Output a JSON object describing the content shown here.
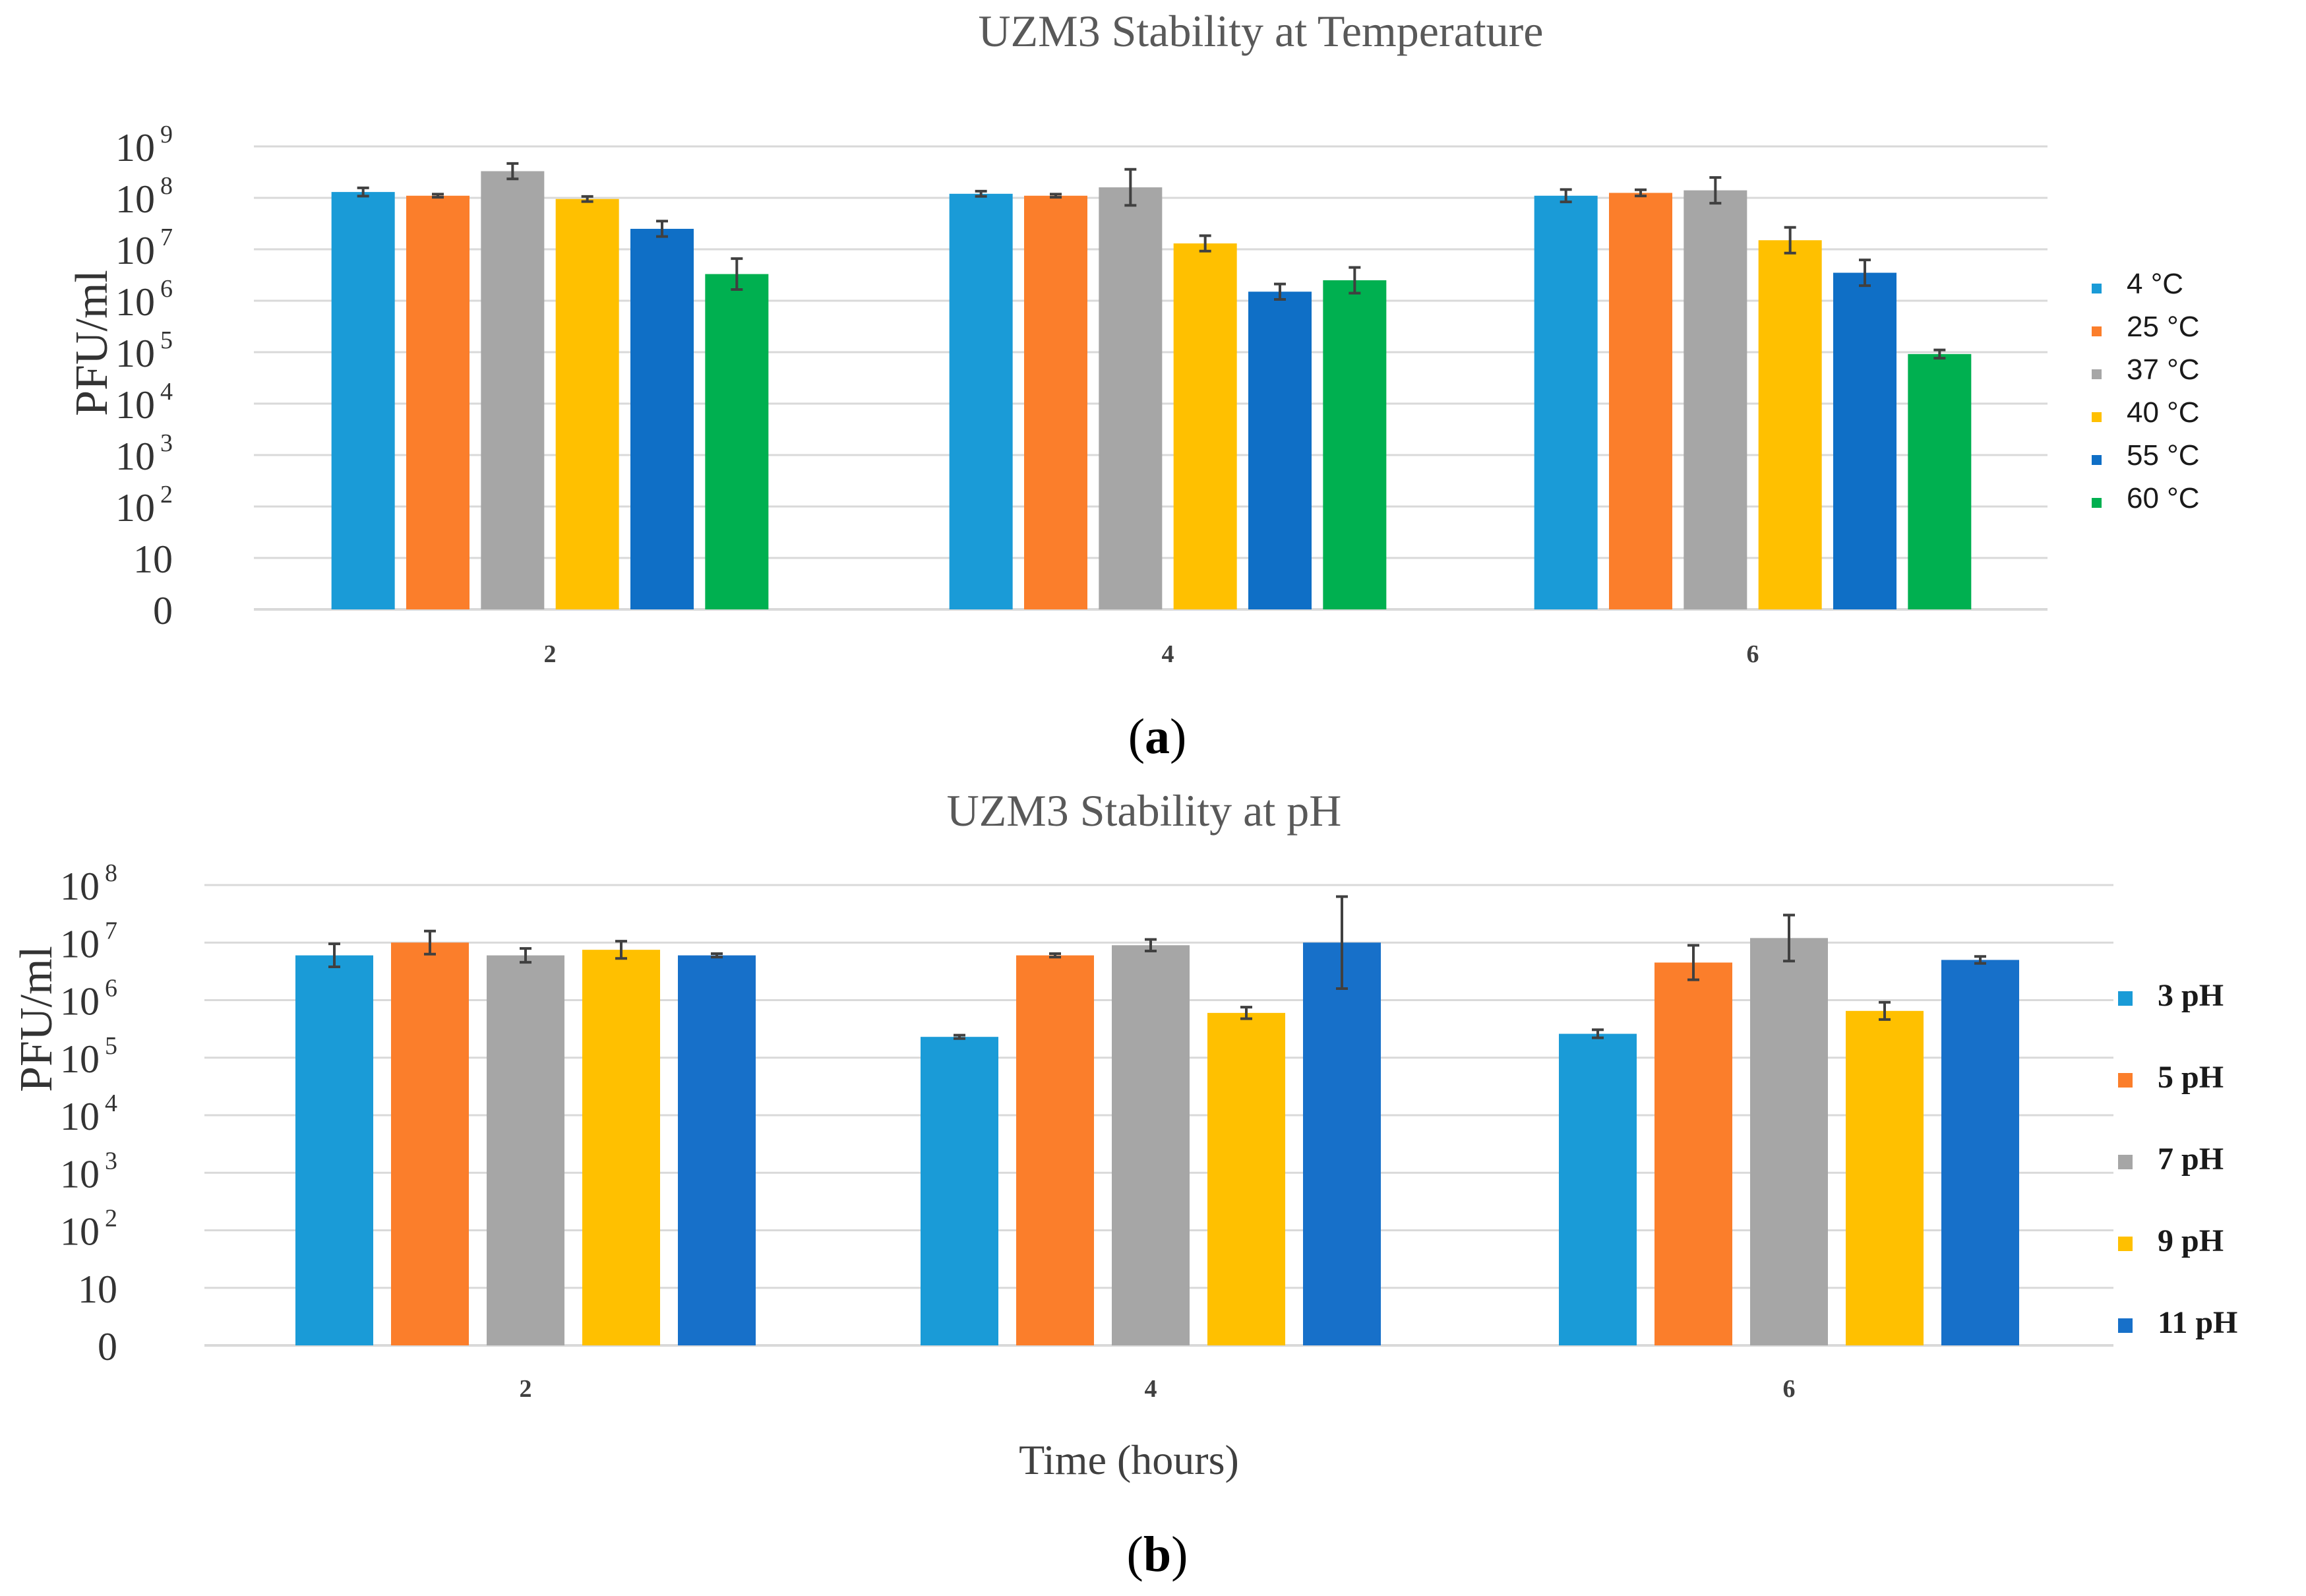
{
  "chart_data": [
    {
      "id": "temp",
      "type": "bar",
      "panel_label": "a",
      "title": "UZM3 Stability at Temperature",
      "ylabel": "PFU/ml",
      "xlabel": "",
      "yscale": "log10",
      "ylim": [
        1,
        1000000000
      ],
      "y_ticks": [
        {
          "base": "0",
          "exp": ""
        },
        {
          "base": "10",
          "exp": ""
        },
        {
          "base": "10",
          "exp": "2"
        },
        {
          "base": "10",
          "exp": "3"
        },
        {
          "base": "10",
          "exp": "4"
        },
        {
          "base": "10",
          "exp": "5"
        },
        {
          "base": "10",
          "exp": "6"
        },
        {
          "base": "10",
          "exp": "7"
        },
        {
          "base": "10",
          "exp": "8"
        },
        {
          "base": "10",
          "exp": "9"
        }
      ],
      "categories": [
        "2",
        "4",
        "6"
      ],
      "legend_position": "right",
      "series": [
        {
          "name": "4 °C",
          "color": "#1a9bd7",
          "values": [
            130000000,
            120000000,
            110000000
          ],
          "errors": [
            0.08,
            0.05,
            0.12
          ]
        },
        {
          "name": "25 °C",
          "color": "#fb7e2b",
          "values": [
            110000000,
            110000000,
            125000000
          ],
          "errors": [
            0.03,
            0.03,
            0.06
          ]
        },
        {
          "name": "37 °C",
          "color": "#a6a6a6",
          "values": [
            330000000,
            160000000,
            140000000
          ],
          "errors": [
            0.15,
            0.35,
            0.25
          ]
        },
        {
          "name": "40 °C",
          "color": "#ffc000",
          "values": [
            95000000,
            13000000,
            15000000
          ],
          "errors": [
            0.05,
            0.15,
            0.25
          ]
        },
        {
          "name": "55 °C",
          "color": "#0f6fc6",
          "values": [
            25000000,
            1500000,
            3500000
          ],
          "errors": [
            0.15,
            0.15,
            0.25
          ]
        },
        {
          "name": "60 °C",
          "color": "#00b050",
          "values": [
            3300000,
            2500000,
            92000
          ],
          "errors": [
            0.3,
            0.25,
            0.08
          ]
        }
      ]
    },
    {
      "id": "ph",
      "type": "bar",
      "panel_label": "b",
      "title": "UZM3 Stability at pH",
      "ylabel": "PFU/ml",
      "xlabel": "Time (hours)",
      "yscale": "log10",
      "ylim": [
        1,
        100000000
      ],
      "y_ticks": [
        {
          "base": "0",
          "exp": ""
        },
        {
          "base": "10",
          "exp": ""
        },
        {
          "base": "10",
          "exp": "2"
        },
        {
          "base": "10",
          "exp": "3"
        },
        {
          "base": "10",
          "exp": "4"
        },
        {
          "base": "10",
          "exp": "5"
        },
        {
          "base": "10",
          "exp": "6"
        },
        {
          "base": "10",
          "exp": "7"
        },
        {
          "base": "10",
          "exp": "8"
        }
      ],
      "categories": [
        "2",
        "4",
        "6"
      ],
      "legend_position": "right",
      "series": [
        {
          "name": "3 pH",
          "color": "#1a9bd7",
          "values": [
            6000000,
            230000,
            260000
          ],
          "errors": [
            0.2,
            0.03,
            0.07
          ]
        },
        {
          "name": "5 pH",
          "color": "#fb7e2b",
          "values": [
            10000000,
            6000000,
            4500000
          ],
          "errors": [
            0.2,
            0.03,
            0.3
          ]
        },
        {
          "name": "7 pH",
          "color": "#a6a6a6",
          "values": [
            6000000,
            9000000,
            12000000
          ],
          "errors": [
            0.12,
            0.1,
            0.4
          ]
        },
        {
          "name": "9 pH",
          "color": "#ffc000",
          "values": [
            7500000,
            600000,
            650000
          ],
          "errors": [
            0.15,
            0.1,
            0.15
          ]
        },
        {
          "name": "11 pH",
          "color": "#1770c9",
          "values": [
            6000000,
            10000000,
            5000000
          ],
          "errors": [
            0.03,
            0.8,
            0.06
          ]
        }
      ]
    }
  ]
}
